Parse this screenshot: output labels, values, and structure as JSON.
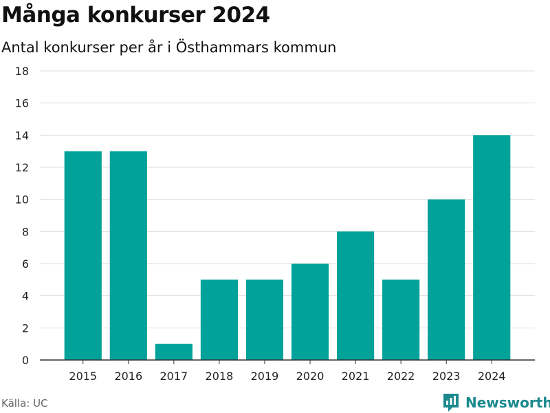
{
  "header": {
    "title": "Många konkurser 2024",
    "subtitle": "Antal konkurser per år i Östhammars kommun"
  },
  "footer": {
    "source": "Källa: UC",
    "brand": "Newsworthy"
  },
  "colors": {
    "bar": "#00a29a",
    "grid": "#dddddd",
    "axis": "#333333",
    "brand": "#1b8a8e"
  },
  "chart_data": {
    "type": "bar",
    "categories": [
      "2015",
      "2016",
      "2017",
      "2018",
      "2019",
      "2020",
      "2021",
      "2022",
      "2023",
      "2024"
    ],
    "values": [
      13,
      13,
      1,
      5,
      5,
      6,
      8,
      5,
      10,
      14
    ],
    "title": "Många konkurser 2024",
    "subtitle": "Antal konkurser per år i Östhammars kommun",
    "xlabel": "",
    "ylabel": "",
    "ylim": [
      0,
      18
    ],
    "yticks": [
      0,
      2,
      4,
      6,
      8,
      10,
      12,
      14,
      16,
      18
    ],
    "grid": true,
    "legend": "none"
  }
}
